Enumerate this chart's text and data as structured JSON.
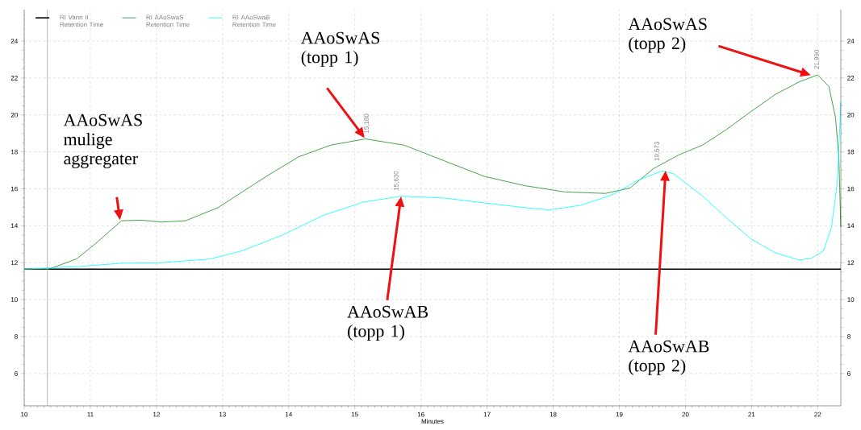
{
  "chart_data": {
    "type": "line",
    "xlabel": "Minutes",
    "xlim": [
      10,
      22.35
    ],
    "ylim": [
      4.25,
      25.7
    ],
    "y2lim": [
      4.25,
      25.7
    ],
    "xticks": [
      10,
      11,
      12,
      13,
      14,
      15,
      16,
      17,
      18,
      19,
      20,
      21,
      22
    ],
    "yticks": [
      6,
      8,
      10,
      12,
      14,
      16,
      18,
      20,
      22,
      24
    ],
    "y2ticks": [
      6,
      8,
      10,
      12,
      14,
      16,
      18,
      20,
      22,
      24
    ],
    "grid": true,
    "legend": "top left",
    "ref_lines": [
      {
        "axis": "x",
        "value": 10.35,
        "color": "#a0a0a0"
      }
    ],
    "series": [
      {
        "name": "RI Vann II Retention Time",
        "color": "#000000",
        "x": [
          10,
          22.35
        ],
        "values": [
          11.65,
          11.65
        ]
      },
      {
        "name": "RI AAoSwaS Retention Time",
        "color": "#1a8c1a",
        "x": [
          10,
          10.37,
          10.79,
          11.1,
          11.47,
          11.77,
          12.08,
          12.44,
          12.93,
          13.66,
          14.15,
          14.64,
          15.16,
          15.74,
          16.35,
          16.96,
          17.57,
          18.18,
          18.79,
          19.16,
          19.52,
          19.89,
          20.26,
          20.62,
          20.99,
          21.36,
          21.72,
          22.0,
          22.17,
          22.27,
          22.32,
          22.35
        ],
        "values": [
          11.65,
          11.65,
          12.2,
          13.1,
          14.27,
          14.3,
          14.2,
          14.27,
          14.98,
          16.67,
          17.73,
          18.37,
          18.7,
          18.37,
          17.52,
          16.67,
          16.17,
          15.83,
          15.75,
          16.04,
          17.1,
          17.82,
          18.37,
          19.21,
          20.18,
          21.11,
          21.79,
          22.17,
          21.54,
          19.85,
          17.73,
          13.93
        ]
      },
      {
        "name": "RI AAoSwaB Retention Time",
        "color": "#00ffff",
        "x": [
          10,
          10.85,
          11.47,
          12.08,
          12.81,
          13.3,
          13.91,
          14.52,
          15.13,
          15.7,
          16.35,
          16.96,
          17.57,
          17.94,
          18.42,
          18.91,
          19.28,
          19.65,
          19.83,
          20.26,
          20.62,
          20.99,
          21.36,
          21.72,
          21.9,
          22.09,
          22.21,
          22.3,
          22.34,
          22.35
        ],
        "values": [
          11.65,
          11.8,
          11.97,
          12.0,
          12.2,
          12.65,
          13.5,
          14.56,
          15.28,
          15.6,
          15.5,
          15.24,
          14.98,
          14.86,
          15.11,
          15.7,
          16.46,
          16.97,
          16.8,
          15.6,
          14.43,
          13.29,
          12.53,
          12.15,
          12.23,
          12.65,
          13.93,
          16.46,
          19.85,
          20.7
        ]
      }
    ],
    "annotations": [
      {
        "text": "15,180",
        "x": 15.18,
        "y": 18.7
      },
      {
        "text": "15,630",
        "x": 15.63,
        "y": 15.6
      },
      {
        "text": "19,573",
        "x": 19.573,
        "y": 17.2
      },
      {
        "text": "21,990",
        "x": 21.99,
        "y": 22.17
      },
      "AAoSwAS mulige aggregater",
      "AAoSwAS (topp 1)",
      "AAoSwAB (topp 1)",
      "AAoSwAS (topp 2)",
      "AAoSwAB (topp 2)"
    ]
  }
}
